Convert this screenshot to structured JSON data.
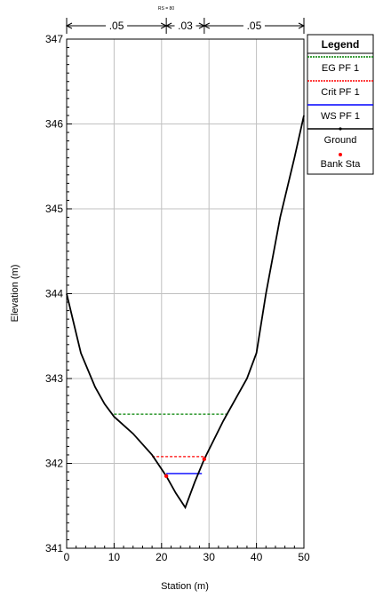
{
  "chart_data": {
    "type": "line",
    "title": "",
    "section_label": "RS = 80",
    "xlabel": "Station (m)",
    "ylabel": "Elevation (m)",
    "xlim": [
      0,
      50
    ],
    "ylim": [
      341,
      347
    ],
    "x_ticks": [
      "0",
      "10",
      "20",
      "30",
      "40",
      "50"
    ],
    "y_ticks": [
      "341",
      "342",
      "343",
      "344",
      "345",
      "346",
      "347"
    ],
    "grid": true,
    "roughness": [
      {
        "label": ".05",
        "from": 0,
        "to": 21
      },
      {
        "label": ".03",
        "from": 21,
        "to": 29
      },
      {
        "label": ".05",
        "from": 29,
        "to": 50
      }
    ],
    "legend_title": "Legend",
    "legend_position": "top-right",
    "series": [
      {
        "name": "EG PF 1",
        "color": "#008000",
        "style": "dashed",
        "x": [
          10,
          34
        ],
        "y": [
          342.58,
          342.58
        ]
      },
      {
        "name": "Crit PF 1",
        "color": "#ff0000",
        "style": "dashed",
        "x": [
          18,
          29.5
        ],
        "y": [
          342.08,
          342.08
        ]
      },
      {
        "name": "WS PF 1",
        "color": "#0000ff",
        "style": "solid",
        "x": [
          21,
          28.5
        ],
        "y": [
          341.88,
          341.88
        ]
      },
      {
        "name": "Ground",
        "color": "#000000",
        "style": "solid",
        "x": [
          0,
          3,
          6,
          8,
          10,
          14,
          18,
          21,
          23,
          25,
          27,
          29,
          33,
          36,
          38,
          40,
          42,
          45,
          48,
          50
        ],
        "y": [
          344.0,
          343.3,
          342.9,
          342.7,
          342.55,
          342.35,
          342.1,
          341.85,
          341.65,
          341.48,
          341.78,
          342.05,
          342.5,
          342.8,
          343.0,
          343.3,
          344.0,
          344.9,
          345.6,
          346.1
        ]
      },
      {
        "name": "Bank Sta",
        "color": "#ff0000",
        "style": "marker",
        "x": [
          21,
          29
        ],
        "y": [
          341.85,
          342.05
        ]
      }
    ]
  }
}
